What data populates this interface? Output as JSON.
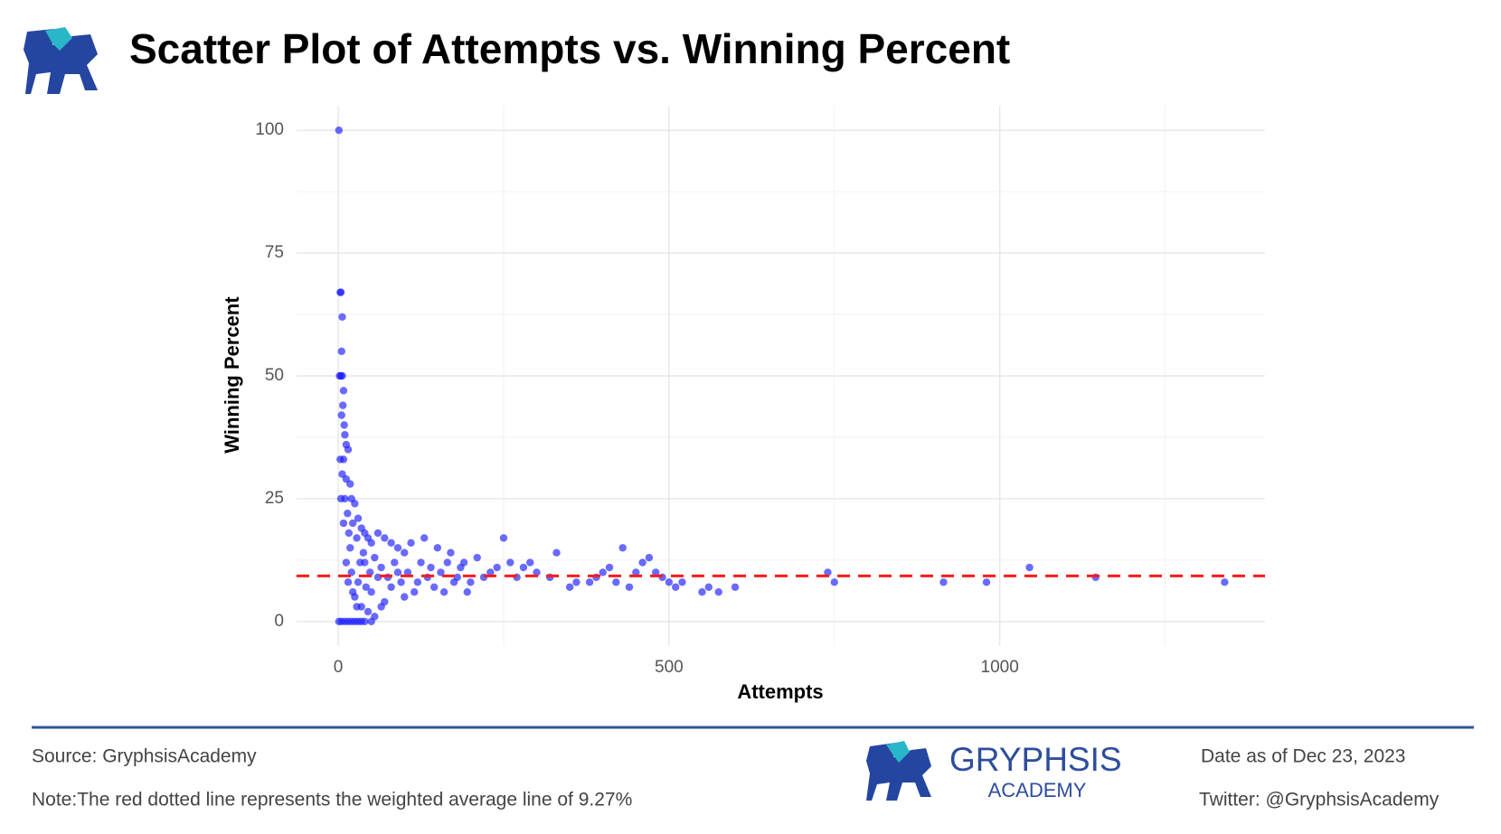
{
  "header": {
    "title": "Scatter Plot of Attempts vs. Winning Percent"
  },
  "chart_data": {
    "type": "scatter",
    "x_label": "Attempts",
    "y_label": "Winning Percent",
    "x": [
      1,
      3,
      4,
      6,
      5,
      2,
      4,
      6,
      8,
      7,
      5,
      9,
      10,
      12,
      3,
      8,
      15,
      6,
      12,
      18,
      4,
      10,
      20,
      25,
      14,
      30,
      8,
      22,
      35,
      40,
      16,
      28,
      45,
      50,
      60,
      70,
      80,
      90,
      100,
      110,
      130,
      150,
      170,
      190,
      210,
      250,
      260,
      280,
      300,
      330,
      360,
      380,
      400,
      410,
      430,
      450,
      460,
      470,
      480,
      500,
      510,
      520,
      550,
      560,
      575,
      600,
      740,
      750,
      915,
      980,
      1045,
      1145,
      1340,
      1,
      5,
      10,
      15,
      20,
      25,
      30,
      35,
      40,
      50,
      20,
      30,
      40,
      50,
      60,
      70,
      80,
      90,
      100,
      120,
      140,
      160,
      180,
      200,
      230,
      25,
      35,
      45,
      55,
      65,
      15,
      12,
      18,
      22,
      28,
      33,
      38,
      42,
      48,
      55,
      65,
      75,
      85,
      95,
      105,
      115,
      125,
      135,
      145,
      155,
      165,
      175,
      185,
      195,
      220,
      240,
      270,
      290,
      320,
      350,
      390,
      420,
      440,
      490
    ],
    "y": [
      100,
      67,
      67,
      62,
      55,
      50,
      50,
      50,
      47,
      44,
      42,
      40,
      38,
      36,
      33,
      33,
      35,
      30,
      29,
      28,
      25,
      25,
      25,
      24,
      22,
      21,
      20,
      20,
      19,
      18,
      18,
      17,
      17,
      16,
      18,
      17,
      16,
      15,
      14,
      16,
      17,
      15,
      14,
      12,
      13,
      17,
      12,
      11,
      10,
      14,
      8,
      8,
      10,
      11,
      15,
      10,
      12,
      13,
      10,
      8,
      7,
      8,
      6,
      7,
      6,
      7,
      10,
      8,
      8,
      8,
      11,
      9,
      8,
      0,
      0,
      0,
      0,
      0,
      0,
      0,
      0,
      0,
      0,
      10,
      8,
      12,
      6,
      9,
      4,
      7,
      10,
      5,
      8,
      11,
      6,
      9,
      8,
      10,
      5,
      3,
      2,
      1,
      3,
      8,
      12,
      15,
      6,
      3,
      12,
      14,
      7,
      10,
      13,
      11,
      9,
      12,
      8,
      10,
      6,
      12,
      9,
      7,
      10,
      12,
      8,
      11,
      6,
      9,
      11,
      9,
      12,
      9,
      7,
      9,
      8,
      7,
      9
    ],
    "color": "#1a1aff",
    "xlim": [
      -63,
      1401
    ],
    "ylim": [
      -5,
      105
    ],
    "xticks": [
      0,
      500,
      1000
    ],
    "yticks": [
      0,
      25,
      50,
      75,
      100
    ],
    "minor_xticks": [
      250,
      750,
      1250
    ],
    "minor_yticks": [
      12.5,
      37.5,
      62.5,
      87.5
    ],
    "grid": true,
    "reference_line": {
      "value": 9.27,
      "color": "#ff1a1a",
      "style": "dashed"
    }
  },
  "footer": {
    "source": "Source: GryphsisAcademy",
    "note": "Note:The red dotted line represents the weighted average line of 9.27%",
    "brand": "GRYPHSIS",
    "brand_sub": "ACADEMY",
    "date": "Date as of Dec 23, 2023",
    "twitter": "Twitter: @GryphsisAcademy"
  }
}
